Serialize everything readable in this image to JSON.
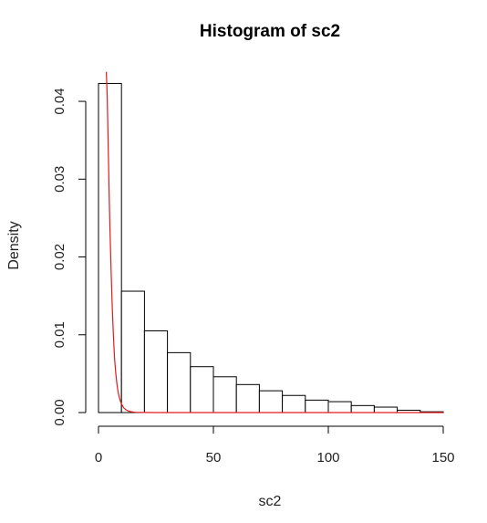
{
  "chart_data": {
    "type": "histogram",
    "title": "Histogram of sc2",
    "xlabel": "sc2",
    "ylabel": "Density",
    "xlim": [
      0,
      150
    ],
    "ylim": [
      0,
      0.042
    ],
    "x_ticks": [
      0,
      50,
      100,
      150
    ],
    "x_tick_labels": [
      "0",
      "50",
      "100",
      "150"
    ],
    "y_ticks": [
      0,
      0.01,
      0.02,
      0.03,
      0.04
    ],
    "y_tick_labels": [
      "0.00",
      "0.01",
      "0.02",
      "0.03",
      "0.04"
    ],
    "bin_edges": [
      0,
      10,
      20,
      30,
      40,
      50,
      60,
      70,
      80,
      90,
      100,
      110,
      120,
      130,
      140,
      150
    ],
    "densities": [
      0.0423,
      0.0156,
      0.0105,
      0.0077,
      0.0059,
      0.0046,
      0.0036,
      0.0028,
      0.0022,
      0.0016,
      0.0014,
      0.0009,
      0.0007,
      0.0003,
      0.0001
    ],
    "grid": false,
    "legend": "none",
    "bar_fill": "#ffffff",
    "bar_edge": "#000000",
    "overlay_curve": {
      "color": "#e31a1c",
      "x": [
        3.4,
        3.8,
        4.2,
        4.6,
        5.0,
        5.5,
        6.0,
        6.5,
        7.0,
        7.5,
        8.0,
        8.5,
        9.0,
        9.5,
        10.0,
        11.0,
        12.0,
        13.0,
        14.0,
        15.0,
        16.0,
        18.0,
        20.0,
        25.0,
        30.0,
        40.0,
        50.0,
        75.0,
        100.0,
        125.0,
        150.0
      ],
      "y": [
        0.0438,
        0.0405,
        0.0345,
        0.0285,
        0.0235,
        0.018,
        0.0135,
        0.0098,
        0.007,
        0.0051,
        0.0037,
        0.0027,
        0.002,
        0.0015,
        0.0011,
        0.0006,
        0.00035,
        0.0002,
        0.00012,
        7e-05,
        4e-05,
        2e-05,
        1e-05,
        0.0,
        0.0,
        0.0,
        0.0,
        0.0,
        0.0,
        0.0,
        0.0
      ]
    }
  }
}
